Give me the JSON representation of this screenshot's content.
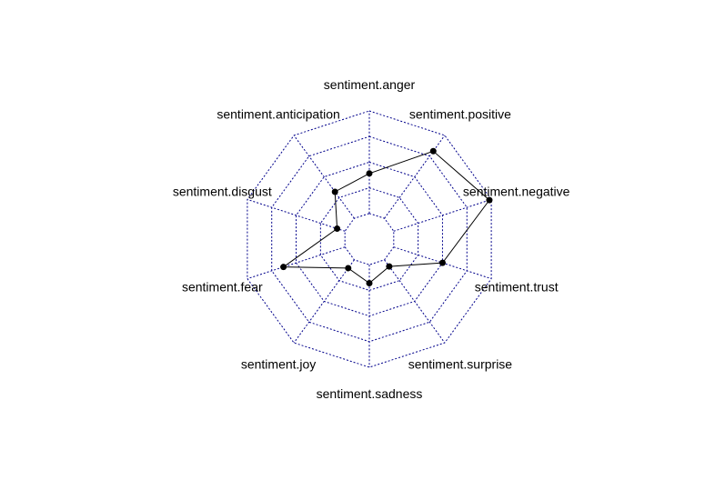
{
  "chart_data": {
    "type": "radar",
    "title": "",
    "axes": [
      "sentiment.anger",
      "sentiment.positive",
      "sentiment.negative",
      "sentiment.trust",
      "sentiment.surprise",
      "sentiment.sadness",
      "sentiment.joy",
      "sentiment.fear",
      "sentiment.disgust",
      "sentiment.anticipation"
    ],
    "range": [
      0,
      1
    ],
    "grid_levels": 4,
    "grid_color": "#00008B",
    "series": [
      {
        "values": [
          0.39,
          0.81,
          0.98,
          0.5,
          0.08,
          0.18,
          0.1,
          0.63,
          0.08,
          0.32
        ],
        "color": "#000000"
      }
    ]
  }
}
